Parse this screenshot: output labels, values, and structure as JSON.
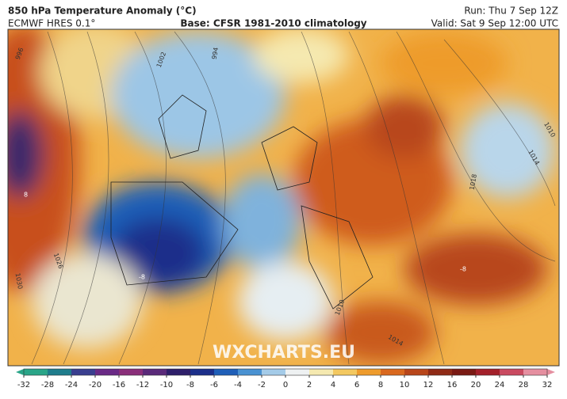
{
  "header": {
    "title": "850 hPa Temperature Anomaly (°C)",
    "model": "ECMWF HRES 0.1°",
    "base": "Base: CFSR 1981-2010 climatology",
    "run": "Run: Thu 7 Sep 12Z",
    "valid": "Valid: Sat 9 Sep 12:00 UTC"
  },
  "map": {
    "watermark": "WXCHARTS.EU",
    "isobar_labels": [
      "996",
      "1002",
      "994",
      "1010",
      "1014",
      "1018",
      "1026",
      "1030",
      "1010",
      "1014",
      "8",
      "-8",
      "-8"
    ]
  },
  "colorbar": {
    "ticks": [
      -32,
      -28,
      -24,
      -20,
      -16,
      -12,
      -10,
      -8,
      -6,
      -4,
      -2,
      0,
      2,
      4,
      6,
      8,
      10,
      12,
      16,
      20,
      24,
      28,
      32
    ],
    "colors": [
      "#2aa588",
      "#1f7d8c",
      "#3a3f8f",
      "#6a2a86",
      "#8a2f7a",
      "#5a2a7a",
      "#2e1f6a",
      "#1c2f8a",
      "#1f5fb8",
      "#4a92d2",
      "#a4cbe8",
      "#eef1f2",
      "#f5e9b0",
      "#f3c860",
      "#ee9b2c",
      "#d9681e",
      "#b8461a",
      "#8f2a16",
      "#7a1a14",
      "#a3202a",
      "#c94a60",
      "#e58fa0"
    ]
  }
}
